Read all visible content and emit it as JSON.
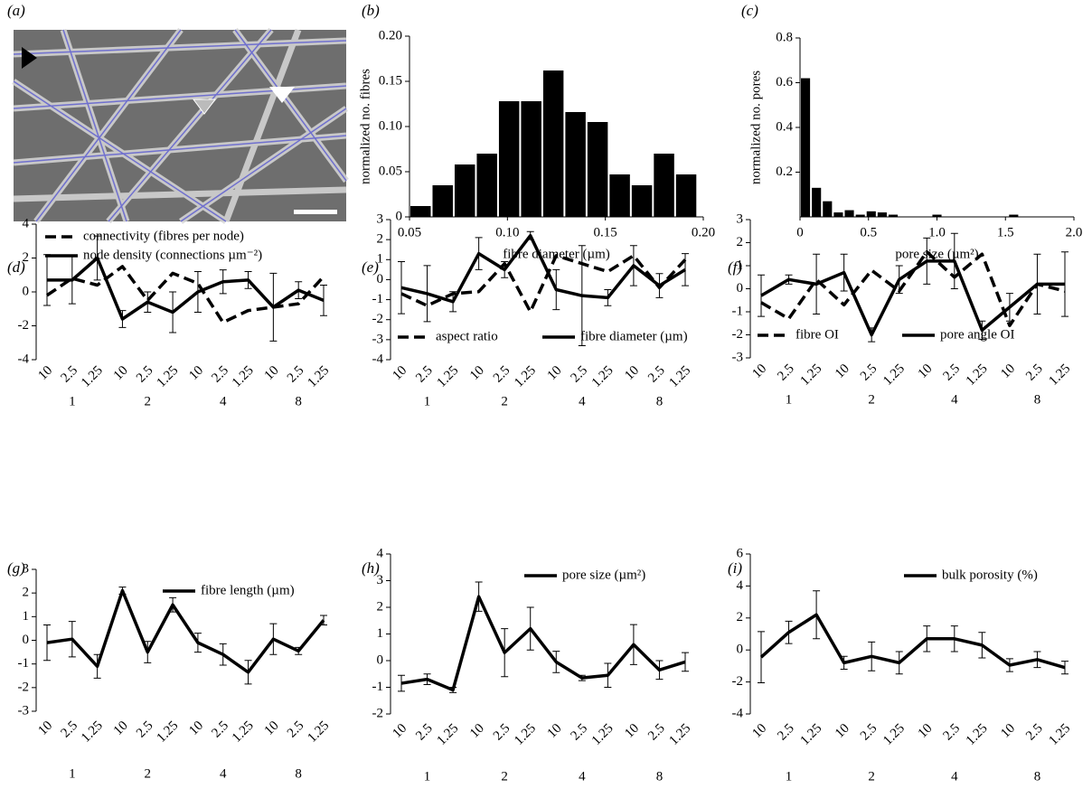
{
  "image_panel": {
    "label": "(a)"
  },
  "chart_data": [
    {
      "type": "histogram",
      "label": "(b)",
      "xlabel": "fibre diameter (µm)",
      "ylabel": "normalized no. fibres",
      "color": "#000000",
      "bins": [
        0.05,
        0.0613,
        0.0726,
        0.0839,
        0.0952,
        0.1065,
        0.1178,
        0.1291,
        0.1404,
        0.1517,
        0.163,
        0.1743,
        0.1856,
        0.1969
      ],
      "values": [
        0.012,
        0.035,
        0.058,
        0.07,
        0.128,
        0.128,
        0.162,
        0.116,
        0.105,
        0.047,
        0.035,
        0.07,
        0.047
      ],
      "xlim": [
        0.05,
        0.2
      ],
      "xticks": [
        0.05,
        {
          "value": 0.1,
          "label": "0.10"
        },
        0.15,
        {
          "value": 0.2,
          "label": "0.20"
        }
      ],
      "ylim": [
        0,
        0.2
      ],
      "yticks": [
        0,
        0.05,
        {
          "value": 0.1,
          "label": "0.10"
        },
        0.15,
        {
          "value": 0.2,
          "label": "0.20"
        }
      ]
    },
    {
      "type": "histogram",
      "label": "(c)",
      "xlabel": "pore size (µm²)",
      "ylabel": "normalized no. pores",
      "color": "#000000",
      "bins": [
        0,
        0.08,
        0.16,
        0.24,
        0.32,
        0.4,
        0.48,
        0.56,
        0.64,
        0.72,
        0.8,
        0.88,
        0.96,
        1.04,
        1.12,
        1.2,
        1.28,
        1.36,
        1.44,
        1.52,
        1.6
      ],
      "values": [
        0.62,
        0.13,
        0.07,
        0.02,
        0.03,
        0.01,
        0.025,
        0.02,
        0.01,
        0,
        0,
        0,
        0.01,
        0,
        0,
        0,
        0,
        0,
        0,
        0.01
      ],
      "xlim": [
        0,
        2
      ],
      "xticks": [
        0,
        0.5,
        {
          "value": 1,
          "label": "1.0"
        },
        1.5,
        {
          "value": 2,
          "label": "2.0"
        }
      ],
      "ylim": [
        0,
        0.8
      ],
      "yticks": [
        0.2,
        0.4,
        0.6,
        0.8
      ]
    },
    {
      "type": "line",
      "label": "(d)",
      "legend": "upper left",
      "categories": [
        "10",
        "2.5",
        "1.25",
        "10",
        "2.5",
        "1.25",
        "10",
        "2.5",
        "1.25",
        "10",
        "2.5",
        "1.25"
      ],
      "groups": [
        "1",
        "2",
        "4",
        "8"
      ],
      "ylim": [
        -4,
        4
      ],
      "yticks": [
        -4,
        -2,
        0,
        2,
        4
      ],
      "series": [
        {
          "name": "connectivity (fibres per node)",
          "color": "#000000",
          "linestyle": "dashed",
          "values": [
            -0.2,
            0.8,
            0.4,
            1.5,
            -0.5,
            1.1,
            0.5,
            -1.8,
            -1.1,
            -0.9,
            -0.7,
            0.9
          ]
        },
        {
          "name": "node density (connections µm⁻²)",
          "color": "#000000",
          "linestyle": "solid",
          "values": [
            0.7,
            0.7,
            2.0,
            -1.6,
            -0.6,
            -1.2,
            0.0,
            0.6,
            0.7,
            -0.9,
            0.1,
            -0.5
          ],
          "errors": [
            1.5,
            1.4,
            1.3,
            0.5,
            0.6,
            1.2,
            1.2,
            0.7,
            0.5,
            2.0,
            0.5,
            0.9
          ]
        }
      ]
    },
    {
      "type": "line",
      "label": "(e)",
      "legend": "lower left",
      "categories": [
        "10",
        "2.5",
        "1.25",
        "10",
        "2.5",
        "1.25",
        "10",
        "2.5",
        "1.25",
        "10",
        "2.5",
        "1.25"
      ],
      "groups": [
        "1",
        "2",
        "4",
        "8"
      ],
      "ylim": [
        -4,
        3
      ],
      "yticks": [
        -4,
        -3,
        -2,
        -1,
        0,
        1,
        2,
        3
      ],
      "series": [
        {
          "name": "aspect ratio",
          "color": "#000000",
          "linestyle": "dashed",
          "values": [
            -0.7,
            -1.3,
            -0.7,
            -0.6,
            0.8,
            -1.6,
            1.2,
            0.8,
            0.4,
            1.2,
            -0.4,
            1.0
          ]
        },
        {
          "name": "fibre diameter (µm)",
          "color": "#000000",
          "linestyle": "solid",
          "values": [
            -0.4,
            -0.7,
            -1.1,
            1.3,
            0.5,
            2.2,
            -0.5,
            -0.8,
            -0.9,
            0.7,
            -0.3,
            0.5
          ],
          "errors": [
            1.3,
            1.4,
            0.5,
            0.8,
            0.4,
            0.2,
            1.0,
            2.5,
            0.4,
            1.0,
            0.6,
            0.8
          ]
        }
      ]
    },
    {
      "type": "line",
      "label": "(f)",
      "legend": "lower left",
      "categories": [
        "10",
        "2.5",
        "1.25",
        "10",
        "2.5",
        "1.25",
        "10",
        "2.5",
        "1.25",
        "10",
        "2.5",
        "1.25"
      ],
      "groups": [
        "1",
        "2",
        "4",
        "8"
      ],
      "ylim": [
        -3,
        3
      ],
      "yticks": [
        -3,
        -2,
        -1,
        0,
        1,
        2,
        3
      ],
      "series": [
        {
          "name": "fibre OI",
          "color": "#000000",
          "linestyle": "dashed",
          "values": [
            -0.6,
            -1.3,
            0.4,
            -0.7,
            0.8,
            -0.1,
            1.6,
            0.5,
            1.5,
            -1.6,
            0.2,
            -0.1
          ]
        },
        {
          "name": "pore angle OI",
          "color": "#000000",
          "linestyle": "solid",
          "values": [
            -0.3,
            0.4,
            0.2,
            0.7,
            -2.0,
            0.4,
            1.2,
            1.2,
            -1.8,
            -0.8,
            0.2,
            0.2
          ],
          "errors": [
            0.9,
            0.2,
            1.3,
            0.8,
            0.3,
            0.6,
            1.0,
            1.2,
            0.4,
            0.6,
            1.3,
            1.4
          ]
        }
      ]
    },
    {
      "type": "line",
      "label": "(g)",
      "legend": "upper right",
      "categories": [
        "10",
        "2.5",
        "1.25",
        "10",
        "2.5",
        "1.25",
        "10",
        "2.5",
        "1.25",
        "10",
        "2.5",
        "1.25"
      ],
      "groups": [
        "1",
        "2",
        "4",
        "8"
      ],
      "ylim": [
        -3,
        3
      ],
      "yticks": [
        -3,
        -2,
        -1,
        0,
        1,
        2,
        3
      ],
      "series": [
        {
          "name": "fibre length (µm)",
          "color": "#000000",
          "linestyle": "solid",
          "values": [
            -0.1,
            0.05,
            -1.1,
            2.1,
            -0.5,
            1.5,
            -0.1,
            -0.6,
            -1.35,
            0.05,
            -0.45,
            0.85
          ],
          "errors": [
            0.75,
            0.75,
            0.5,
            0.15,
            0.45,
            0.3,
            0.4,
            0.45,
            0.5,
            0.65,
            0.15,
            0.2
          ]
        }
      ]
    },
    {
      "type": "line",
      "label": "(h)",
      "legend": "upper right",
      "categories": [
        "10",
        "2.5",
        "1.25",
        "10",
        "2.5",
        "1.25",
        "10",
        "2.5",
        "1.25",
        "10",
        "2.5",
        "1.25"
      ],
      "groups": [
        "1",
        "2",
        "4",
        "8"
      ],
      "ylim": [
        -2,
        4
      ],
      "yticks": [
        -2,
        -1,
        0,
        1,
        2,
        3,
        4
      ],
      "series": [
        {
          "name": "pore size (µm²)",
          "color": "#000000",
          "linestyle": "solid",
          "values": [
            -0.85,
            -0.7,
            -1.1,
            2.4,
            0.3,
            1.2,
            -0.05,
            -0.65,
            -0.55,
            0.6,
            -0.35,
            -0.05
          ],
          "errors": [
            0.3,
            0.2,
            0.1,
            0.55,
            0.9,
            0.8,
            0.4,
            0.1,
            0.45,
            0.75,
            0.35,
            0.35
          ]
        }
      ]
    },
    {
      "type": "line",
      "label": "(i)",
      "legend": "upper right",
      "categories": [
        "10",
        "2.5",
        "1.25",
        "10",
        "2.5",
        "1.25",
        "10",
        "2.5",
        "1.25",
        "10",
        "2.5",
        "1.25"
      ],
      "groups": [
        "1",
        "2",
        "4",
        "8"
      ],
      "ylim": [
        -4,
        6
      ],
      "yticks": [
        -4,
        -2,
        0,
        2,
        4,
        6
      ],
      "series": [
        {
          "name": "bulk porosity (%)",
          "color": "#000000",
          "linestyle": "solid",
          "values": [
            -0.45,
            1.1,
            2.2,
            -0.8,
            -0.4,
            -0.8,
            0.7,
            0.7,
            0.3,
            -0.95,
            -0.6,
            -1.1
          ],
          "errors": [
            1.6,
            0.7,
            1.5,
            0.4,
            0.9,
            0.7,
            0.8,
            0.8,
            0.8,
            0.4,
            0.5,
            0.4
          ]
        }
      ]
    }
  ]
}
